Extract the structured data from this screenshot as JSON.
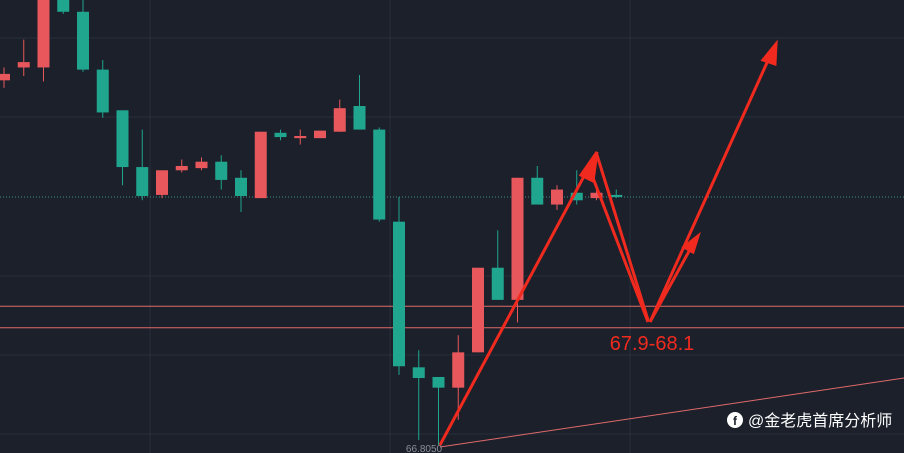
{
  "chart_data": {
    "type": "candlestick",
    "open": [
      70.21,
      70.33,
      70.33,
      70.96,
      70.85,
      70.31,
      69.93,
      69.4,
      69.14,
      69.37,
      69.39,
      69.45,
      69.3,
      69.11,
      69.72,
      69.67,
      69.67,
      69.73,
      69.97,
      69.75,
      68.89,
      67.53,
      67.44,
      67.34,
      67.67,
      68.46,
      68.16,
      69.3,
      69.05,
      69.16,
      69.11,
      69.14
    ],
    "high": [
      70.33,
      70.59,
      70.96,
      70.96,
      70.96,
      70.4,
      69.93,
      69.75,
      69.37,
      69.47,
      69.49,
      69.51,
      69.37,
      69.73,
      69.75,
      69.75,
      69.74,
      70.03,
      70.26,
      69.77,
      69.12,
      67.69,
      67.44,
      67.83,
      68.46,
      68.81,
      69.3,
      69.41,
      69.23,
      69.37,
      69.21,
      69.19
    ],
    "low": [
      70.14,
      70.25,
      70.2,
      70.83,
      70.29,
      69.86,
      69.23,
      69.09,
      69.11,
      69.35,
      69.37,
      69.19,
      68.98,
      69.11,
      69.65,
      69.61,
      69.67,
      69.73,
      69.75,
      68.89,
      67.46,
      66.85,
      66.805,
      67.04,
      67.67,
      68.16,
      67.95,
      69.05,
      69.0,
      69.05,
      69.09,
      69.11
    ],
    "close": [
      70.27,
      70.38,
      70.96,
      70.85,
      70.31,
      69.91,
      69.4,
      69.13,
      69.37,
      69.41,
      69.45,
      69.28,
      69.13,
      69.73,
      69.68,
      69.69,
      69.74,
      69.95,
      69.75,
      68.91,
      67.54,
      67.43,
      67.34,
      67.67,
      68.46,
      68.16,
      69.3,
      69.05,
      69.19,
      69.09,
      69.16,
      69.12
    ],
    "up_color": "#e8575b",
    "down_color": "#20a58f",
    "ylim": [
      66.73,
      70.96
    ],
    "zone": [
      67.9,
      68.1
    ],
    "zone_label": "67.9-68.1",
    "zone_color": "#e06a6a",
    "last_price": 69.12,
    "low_label": "66.8050",
    "watermark": "@金老虎首席分析师"
  }
}
